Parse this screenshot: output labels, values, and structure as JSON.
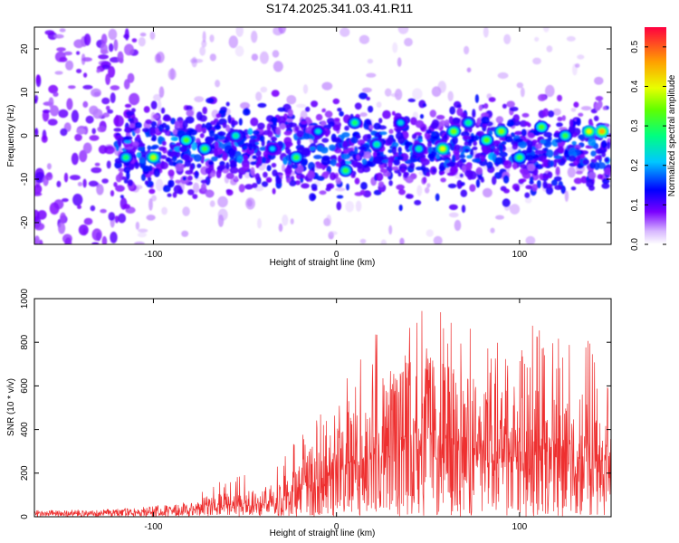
{
  "title": "S174.2025.341.03.41.R11",
  "chart_data": [
    {
      "type": "heatmap",
      "xlabel": "Height of straight line (km)",
      "ylabel": "Frequency (Hz)",
      "xlim": [
        -165,
        150
      ],
      "ylim": [
        -25,
        25
      ],
      "xticks": [
        -100,
        0,
        100
      ],
      "yticks": [
        -20,
        -10,
        0,
        10,
        20
      ],
      "colorbar": {
        "label": "Normalized spectral amplitude",
        "range": [
          0.0,
          0.55
        ],
        "ticks": [
          0.0,
          0.1,
          0.2,
          0.3,
          0.4,
          0.5
        ]
      },
      "description_band": {
        "center_freq_hz": -3,
        "half_width_hz": 7,
        "strong_from_km": -120
      },
      "hotspots": [
        {
          "x": -115,
          "y": -5,
          "v": 0.28
        },
        {
          "x": -100,
          "y": -5,
          "v": 0.38
        },
        {
          "x": -82,
          "y": -1,
          "v": 0.32
        },
        {
          "x": -72,
          "y": -3,
          "v": 0.3
        },
        {
          "x": -55,
          "y": 0,
          "v": 0.25
        },
        {
          "x": -35,
          "y": -3,
          "v": 0.2
        },
        {
          "x": -22,
          "y": -5,
          "v": 0.3
        },
        {
          "x": -10,
          "y": 1,
          "v": 0.22
        },
        {
          "x": 5,
          "y": -8,
          "v": 0.3
        },
        {
          "x": 10,
          "y": 3,
          "v": 0.28
        },
        {
          "x": 22,
          "y": -2,
          "v": 0.25
        },
        {
          "x": 35,
          "y": 3,
          "v": 0.22
        },
        {
          "x": 45,
          "y": -3,
          "v": 0.24
        },
        {
          "x": 58,
          "y": -3,
          "v": 0.4
        },
        {
          "x": 64,
          "y": 1,
          "v": 0.35
        },
        {
          "x": 72,
          "y": 3,
          "v": 0.26
        },
        {
          "x": 82,
          "y": -1,
          "v": 0.33
        },
        {
          "x": 90,
          "y": 1,
          "v": 0.36
        },
        {
          "x": 100,
          "y": -5,
          "v": 0.3
        },
        {
          "x": 112,
          "y": 2,
          "v": 0.32
        },
        {
          "x": 125,
          "y": 0,
          "v": 0.3
        },
        {
          "x": 138,
          "y": 1,
          "v": 0.4
        },
        {
          "x": 145,
          "y": 1,
          "v": 0.45
        }
      ]
    },
    {
      "type": "line",
      "xlabel": "Height of straight line (km)",
      "ylabel": "SNR (10 * v/v)",
      "xlim": [
        -165,
        150
      ],
      "ylim": [
        0,
        1000
      ],
      "xticks": [
        -100,
        0,
        100
      ],
      "yticks": [
        0,
        200,
        400,
        600,
        800,
        1000
      ],
      "series": [
        {
          "name": "SNR",
          "color": "#ee3030",
          "envelope_x": [
            -165,
            -120,
            -80,
            -70,
            -60,
            -50,
            -40,
            -30,
            -20,
            -10,
            0,
            10,
            20,
            30,
            40,
            50,
            60,
            70,
            80,
            90,
            100,
            110,
            120,
            130,
            140,
            150
          ],
          "envelope_peak": [
            22,
            30,
            70,
            200,
            160,
            220,
            140,
            300,
            400,
            500,
            640,
            650,
            960,
            700,
            880,
            1000,
            920,
            880,
            900,
            780,
            880,
            900,
            860,
            880,
            840,
            640
          ],
          "envelope_mean": [
            15,
            18,
            30,
            50,
            55,
            60,
            60,
            90,
            130,
            180,
            220,
            260,
            300,
            320,
            360,
            370,
            350,
            330,
            320,
            300,
            300,
            300,
            300,
            280,
            300,
            300
          ]
        }
      ]
    }
  ]
}
